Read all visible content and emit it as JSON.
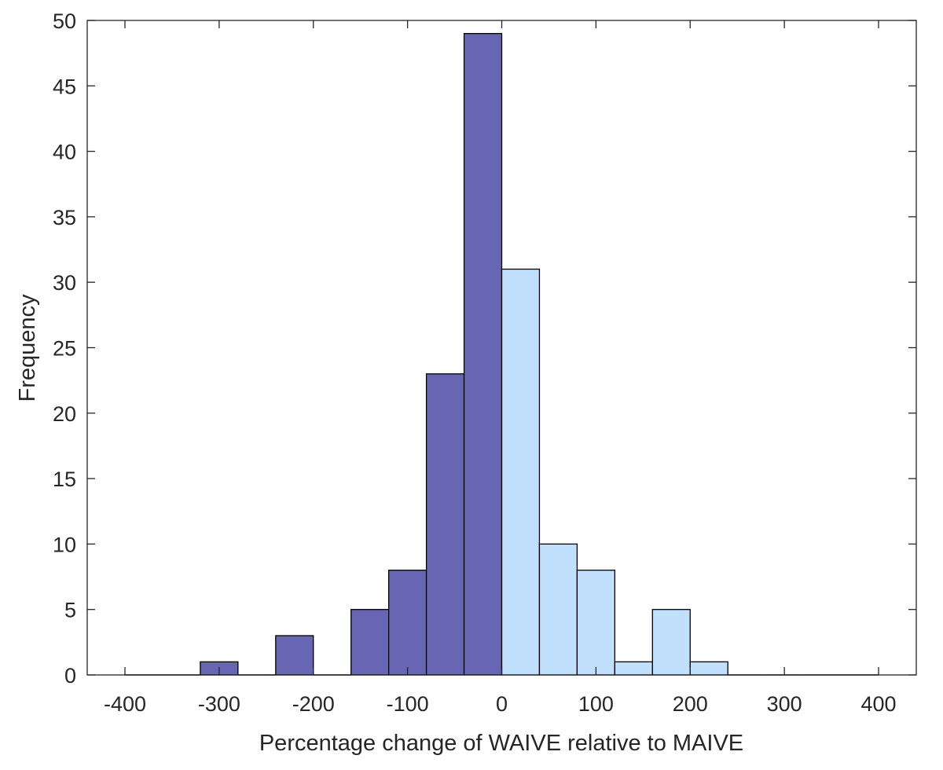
{
  "chart_data": {
    "type": "bar",
    "subtype": "histogram",
    "title": "",
    "xlabel": "Percentage change of WAIVE relative to MAIVE",
    "ylabel": "Frequency",
    "xlim": [
      -400,
      400
    ],
    "ylim": [
      0,
      50
    ],
    "xticks": [
      -400,
      -300,
      -200,
      -100,
      0,
      100,
      200,
      300,
      400
    ],
    "yticks": [
      0,
      5,
      10,
      15,
      20,
      25,
      30,
      35,
      40,
      45,
      50
    ],
    "bin_width": 40,
    "grid": false,
    "legend": "none",
    "bins": [
      {
        "start": -400,
        "end": -360,
        "count": 0,
        "color": "#6666b2"
      },
      {
        "start": -360,
        "end": -320,
        "count": 0,
        "color": "#6666b2"
      },
      {
        "start": -320,
        "end": -280,
        "count": 1,
        "color": "#6666b2"
      },
      {
        "start": -280,
        "end": -240,
        "count": 0,
        "color": "#6666b2"
      },
      {
        "start": -240,
        "end": -200,
        "count": 3,
        "color": "#6666b2"
      },
      {
        "start": -200,
        "end": -160,
        "count": 0,
        "color": "#6666b2"
      },
      {
        "start": -160,
        "end": -120,
        "count": 5,
        "color": "#6666b2"
      },
      {
        "start": -120,
        "end": -80,
        "count": 8,
        "color": "#6666b2"
      },
      {
        "start": -80,
        "end": -40,
        "count": 23,
        "color": "#6666b2"
      },
      {
        "start": -40,
        "end": 0,
        "count": 49,
        "color": "#6666b2"
      },
      {
        "start": 0,
        "end": 40,
        "count": 31,
        "color": "#c0e0fe"
      },
      {
        "start": 40,
        "end": 80,
        "count": 10,
        "color": "#c0e0fe"
      },
      {
        "start": 80,
        "end": 120,
        "count": 8,
        "color": "#c0e0fe"
      },
      {
        "start": 120,
        "end": 160,
        "count": 1,
        "color": "#c0e0fe"
      },
      {
        "start": 160,
        "end": 200,
        "count": 5,
        "color": "#c0e0fe"
      },
      {
        "start": 200,
        "end": 240,
        "count": 1,
        "color": "#c0e0fe"
      },
      {
        "start": 240,
        "end": 280,
        "count": 0,
        "color": "#c0e0fe"
      },
      {
        "start": 280,
        "end": 320,
        "count": 0,
        "color": "#c0e0fe"
      },
      {
        "start": 320,
        "end": 360,
        "count": 0,
        "color": "#c0e0fe"
      },
      {
        "start": 360,
        "end": 400,
        "count": 0,
        "color": "#c0e0fe"
      }
    ],
    "colors": {
      "negative_bins": "#6666b2",
      "positive_bins": "#c0e0fe",
      "edge": "#000000",
      "axis": "#262626"
    }
  }
}
